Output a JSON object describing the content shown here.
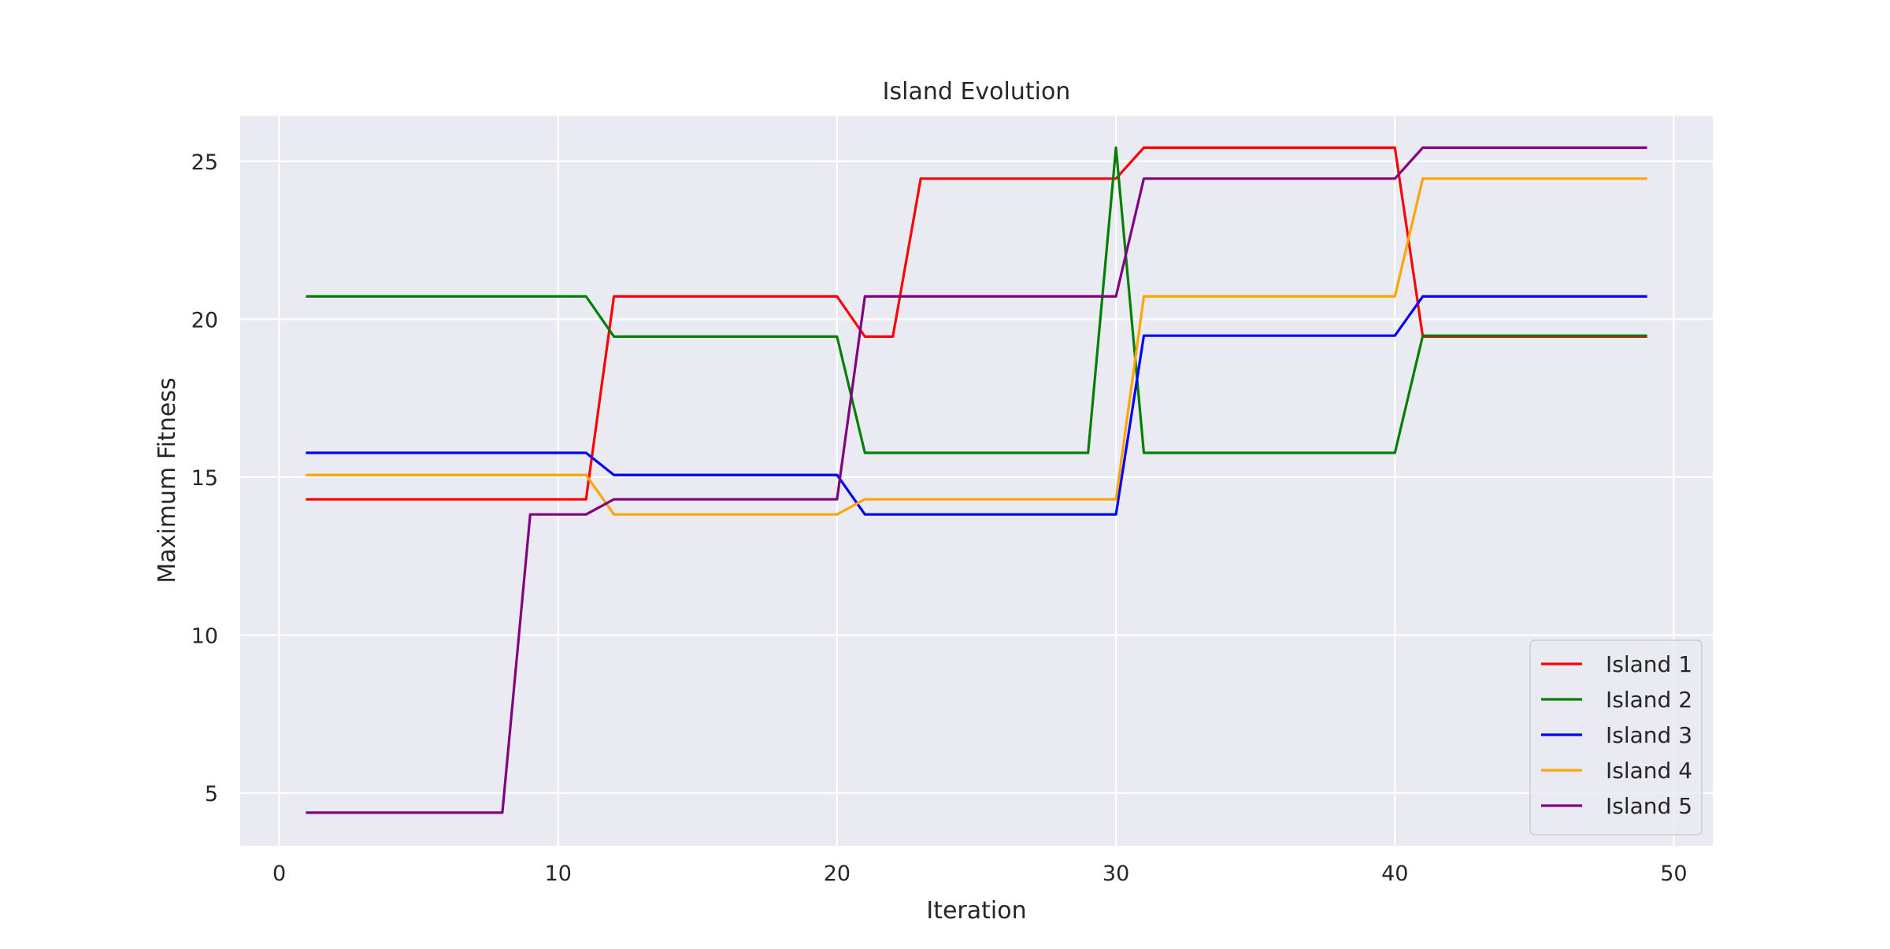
{
  "chart_data": {
    "type": "line",
    "title": "Island Evolution",
    "xlabel": "Iteration",
    "ylabel": "Maximum Fitness",
    "xlim": [
      -1.4,
      51.4
    ],
    "ylim": [
      3.33,
      26.44
    ],
    "xticks": [
      0,
      10,
      20,
      30,
      40,
      50
    ],
    "yticks": [
      5,
      10,
      15,
      20,
      25
    ],
    "grid": true,
    "legend_position": "bottom-right",
    "x": [
      1,
      2,
      3,
      4,
      5,
      6,
      7,
      8,
      9,
      10,
      11,
      12,
      13,
      14,
      15,
      16,
      17,
      18,
      19,
      20,
      21,
      22,
      23,
      24,
      25,
      26,
      27,
      28,
      29,
      30,
      31,
      32,
      33,
      34,
      35,
      36,
      37,
      38,
      39,
      40,
      41,
      42,
      43,
      44,
      45,
      46,
      47,
      48,
      49
    ],
    "series": [
      {
        "name": "Island 1",
        "color": "#ff0000",
        "values": [
          14.3,
          14.3,
          14.3,
          14.3,
          14.3,
          14.3,
          14.3,
          14.3,
          14.3,
          14.3,
          14.3,
          20.72,
          20.72,
          20.72,
          20.72,
          20.72,
          20.72,
          20.72,
          20.72,
          20.72,
          19.45,
          19.45,
          24.45,
          24.45,
          24.45,
          24.45,
          24.45,
          24.45,
          24.45,
          24.45,
          25.43,
          25.43,
          25.43,
          25.43,
          25.43,
          25.43,
          25.43,
          25.43,
          25.43,
          25.43,
          19.45,
          19.45,
          19.45,
          19.45,
          19.45,
          19.45,
          19.45,
          19.45,
          19.45
        ]
      },
      {
        "name": "Island 2",
        "color": "#008000",
        "values": [
          20.72,
          20.72,
          20.72,
          20.72,
          20.72,
          20.72,
          20.72,
          20.72,
          20.72,
          20.72,
          20.72,
          19.45,
          19.45,
          19.45,
          19.45,
          19.45,
          19.45,
          19.45,
          19.45,
          19.45,
          15.77,
          15.77,
          15.77,
          15.77,
          15.77,
          15.77,
          15.77,
          15.77,
          15.77,
          25.43,
          15.77,
          15.77,
          15.77,
          15.77,
          15.77,
          15.77,
          15.77,
          15.77,
          15.77,
          15.77,
          19.48,
          19.48,
          19.48,
          19.48,
          19.48,
          19.48,
          19.48,
          19.48,
          19.48
        ]
      },
      {
        "name": "Island 3",
        "color": "#0000ff",
        "values": [
          15.77,
          15.77,
          15.77,
          15.77,
          15.77,
          15.77,
          15.77,
          15.77,
          15.77,
          15.77,
          15.77,
          15.07,
          15.07,
          15.07,
          15.07,
          15.07,
          15.07,
          15.07,
          15.07,
          15.07,
          13.82,
          13.82,
          13.82,
          13.82,
          13.82,
          13.82,
          13.82,
          13.82,
          13.82,
          13.82,
          19.48,
          19.48,
          19.48,
          19.48,
          19.48,
          19.48,
          19.48,
          19.48,
          19.48,
          19.48,
          20.72,
          20.72,
          20.72,
          20.72,
          20.72,
          20.72,
          20.72,
          20.72,
          20.72
        ]
      },
      {
        "name": "Island 4",
        "color": "#ffa500",
        "values": [
          15.07,
          15.07,
          15.07,
          15.07,
          15.07,
          15.07,
          15.07,
          15.07,
          15.07,
          15.07,
          15.07,
          13.82,
          13.82,
          13.82,
          13.82,
          13.82,
          13.82,
          13.82,
          13.82,
          13.82,
          14.3,
          14.3,
          14.3,
          14.3,
          14.3,
          14.3,
          14.3,
          14.3,
          14.3,
          14.3,
          20.72,
          20.72,
          20.72,
          20.72,
          20.72,
          20.72,
          20.72,
          20.72,
          20.72,
          20.72,
          24.45,
          24.45,
          24.45,
          24.45,
          24.45,
          24.45,
          24.45,
          24.45,
          24.45
        ]
      },
      {
        "name": "Island 5",
        "color": "#800080",
        "values": [
          4.38,
          4.38,
          4.38,
          4.38,
          4.38,
          4.38,
          4.38,
          4.38,
          13.82,
          13.82,
          13.82,
          14.3,
          14.3,
          14.3,
          14.3,
          14.3,
          14.3,
          14.3,
          14.3,
          14.3,
          20.72,
          20.72,
          20.72,
          20.72,
          20.72,
          20.72,
          20.72,
          20.72,
          20.72,
          20.72,
          24.45,
          24.45,
          24.45,
          24.45,
          24.45,
          24.45,
          24.45,
          24.45,
          24.45,
          24.45,
          25.43,
          25.43,
          25.43,
          25.43,
          25.43,
          25.43,
          25.43,
          25.43,
          25.43
        ]
      }
    ]
  }
}
